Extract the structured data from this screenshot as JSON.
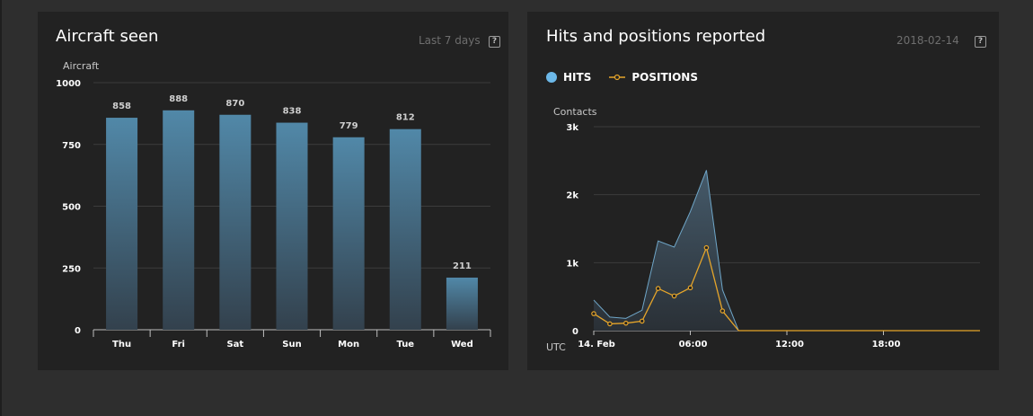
{
  "panels": {
    "aircraft": {
      "title": "Aircraft seen",
      "range_label": "Last 7 days",
      "help_label": "?"
    },
    "hits": {
      "title": "Hits and positions reported",
      "date_label": "2018-02-14",
      "help_label": "?",
      "legend": [
        {
          "label": "HITS",
          "color": "#6cb8e8",
          "marker": "dot"
        },
        {
          "label": "POSITIONS",
          "color": "#e6a52a",
          "marker": "line-circle"
        }
      ]
    }
  },
  "colors": {
    "bar_top": "#5188a8",
    "bar_bottom": "#33414d",
    "hits_line": "#6fa6c8",
    "positions_line": "#e6a52a",
    "grid": "#3c3c3c",
    "axis": "#bfbfbf"
  },
  "chart_data": [
    {
      "type": "bar",
      "ylabel": "Aircraft",
      "categories": [
        "Thu",
        "Fri",
        "Sat",
        "Sun",
        "Mon",
        "Tue",
        "Wed"
      ],
      "values": [
        858,
        888,
        870,
        838,
        779,
        812,
        211
      ],
      "data_labels": [
        "858",
        "888",
        "870",
        "838",
        "779",
        "812",
        "211"
      ],
      "ylim": [
        0,
        1000
      ],
      "yticks": [
        0,
        250,
        500,
        750,
        1000
      ],
      "ytick_labels": [
        "0",
        "250",
        "500",
        "750",
        "1000"
      ],
      "grid": true
    },
    {
      "type": "area",
      "ylabel": "Contacts",
      "xlabel": "UTC",
      "ylim": [
        0,
        3000
      ],
      "yticks": [
        0,
        1000,
        2000,
        3000
      ],
      "ytick_labels": [
        "0",
        "1k",
        "2k",
        "3k"
      ],
      "xlim": [
        0,
        24
      ],
      "xticks": [
        0,
        6,
        12,
        18
      ],
      "xtick_labels": [
        "14. Feb",
        "06:00",
        "12:00",
        "18:00"
      ],
      "grid": true,
      "legend_position": "top-left",
      "x": [
        0,
        1,
        2,
        3,
        4,
        5,
        6,
        7,
        8,
        9,
        10,
        11,
        12,
        13,
        14,
        15,
        16,
        17,
        18,
        19,
        20,
        21,
        22,
        23
      ],
      "series": [
        {
          "name": "HITS",
          "type": "area",
          "values": [
            450,
            200,
            180,
            300,
            1320,
            1230,
            1750,
            2360,
            600,
            0,
            0,
            0,
            0,
            0,
            0,
            0,
            0,
            0,
            0,
            0,
            0,
            0,
            0,
            0
          ]
        },
        {
          "name": "POSITIONS",
          "type": "line",
          "values": [
            250,
            100,
            110,
            140,
            620,
            510,
            630,
            1220,
            290,
            0,
            0,
            0,
            0,
            0,
            0,
            0,
            0,
            0,
            0,
            0,
            0,
            0,
            0,
            0
          ]
        }
      ]
    }
  ]
}
